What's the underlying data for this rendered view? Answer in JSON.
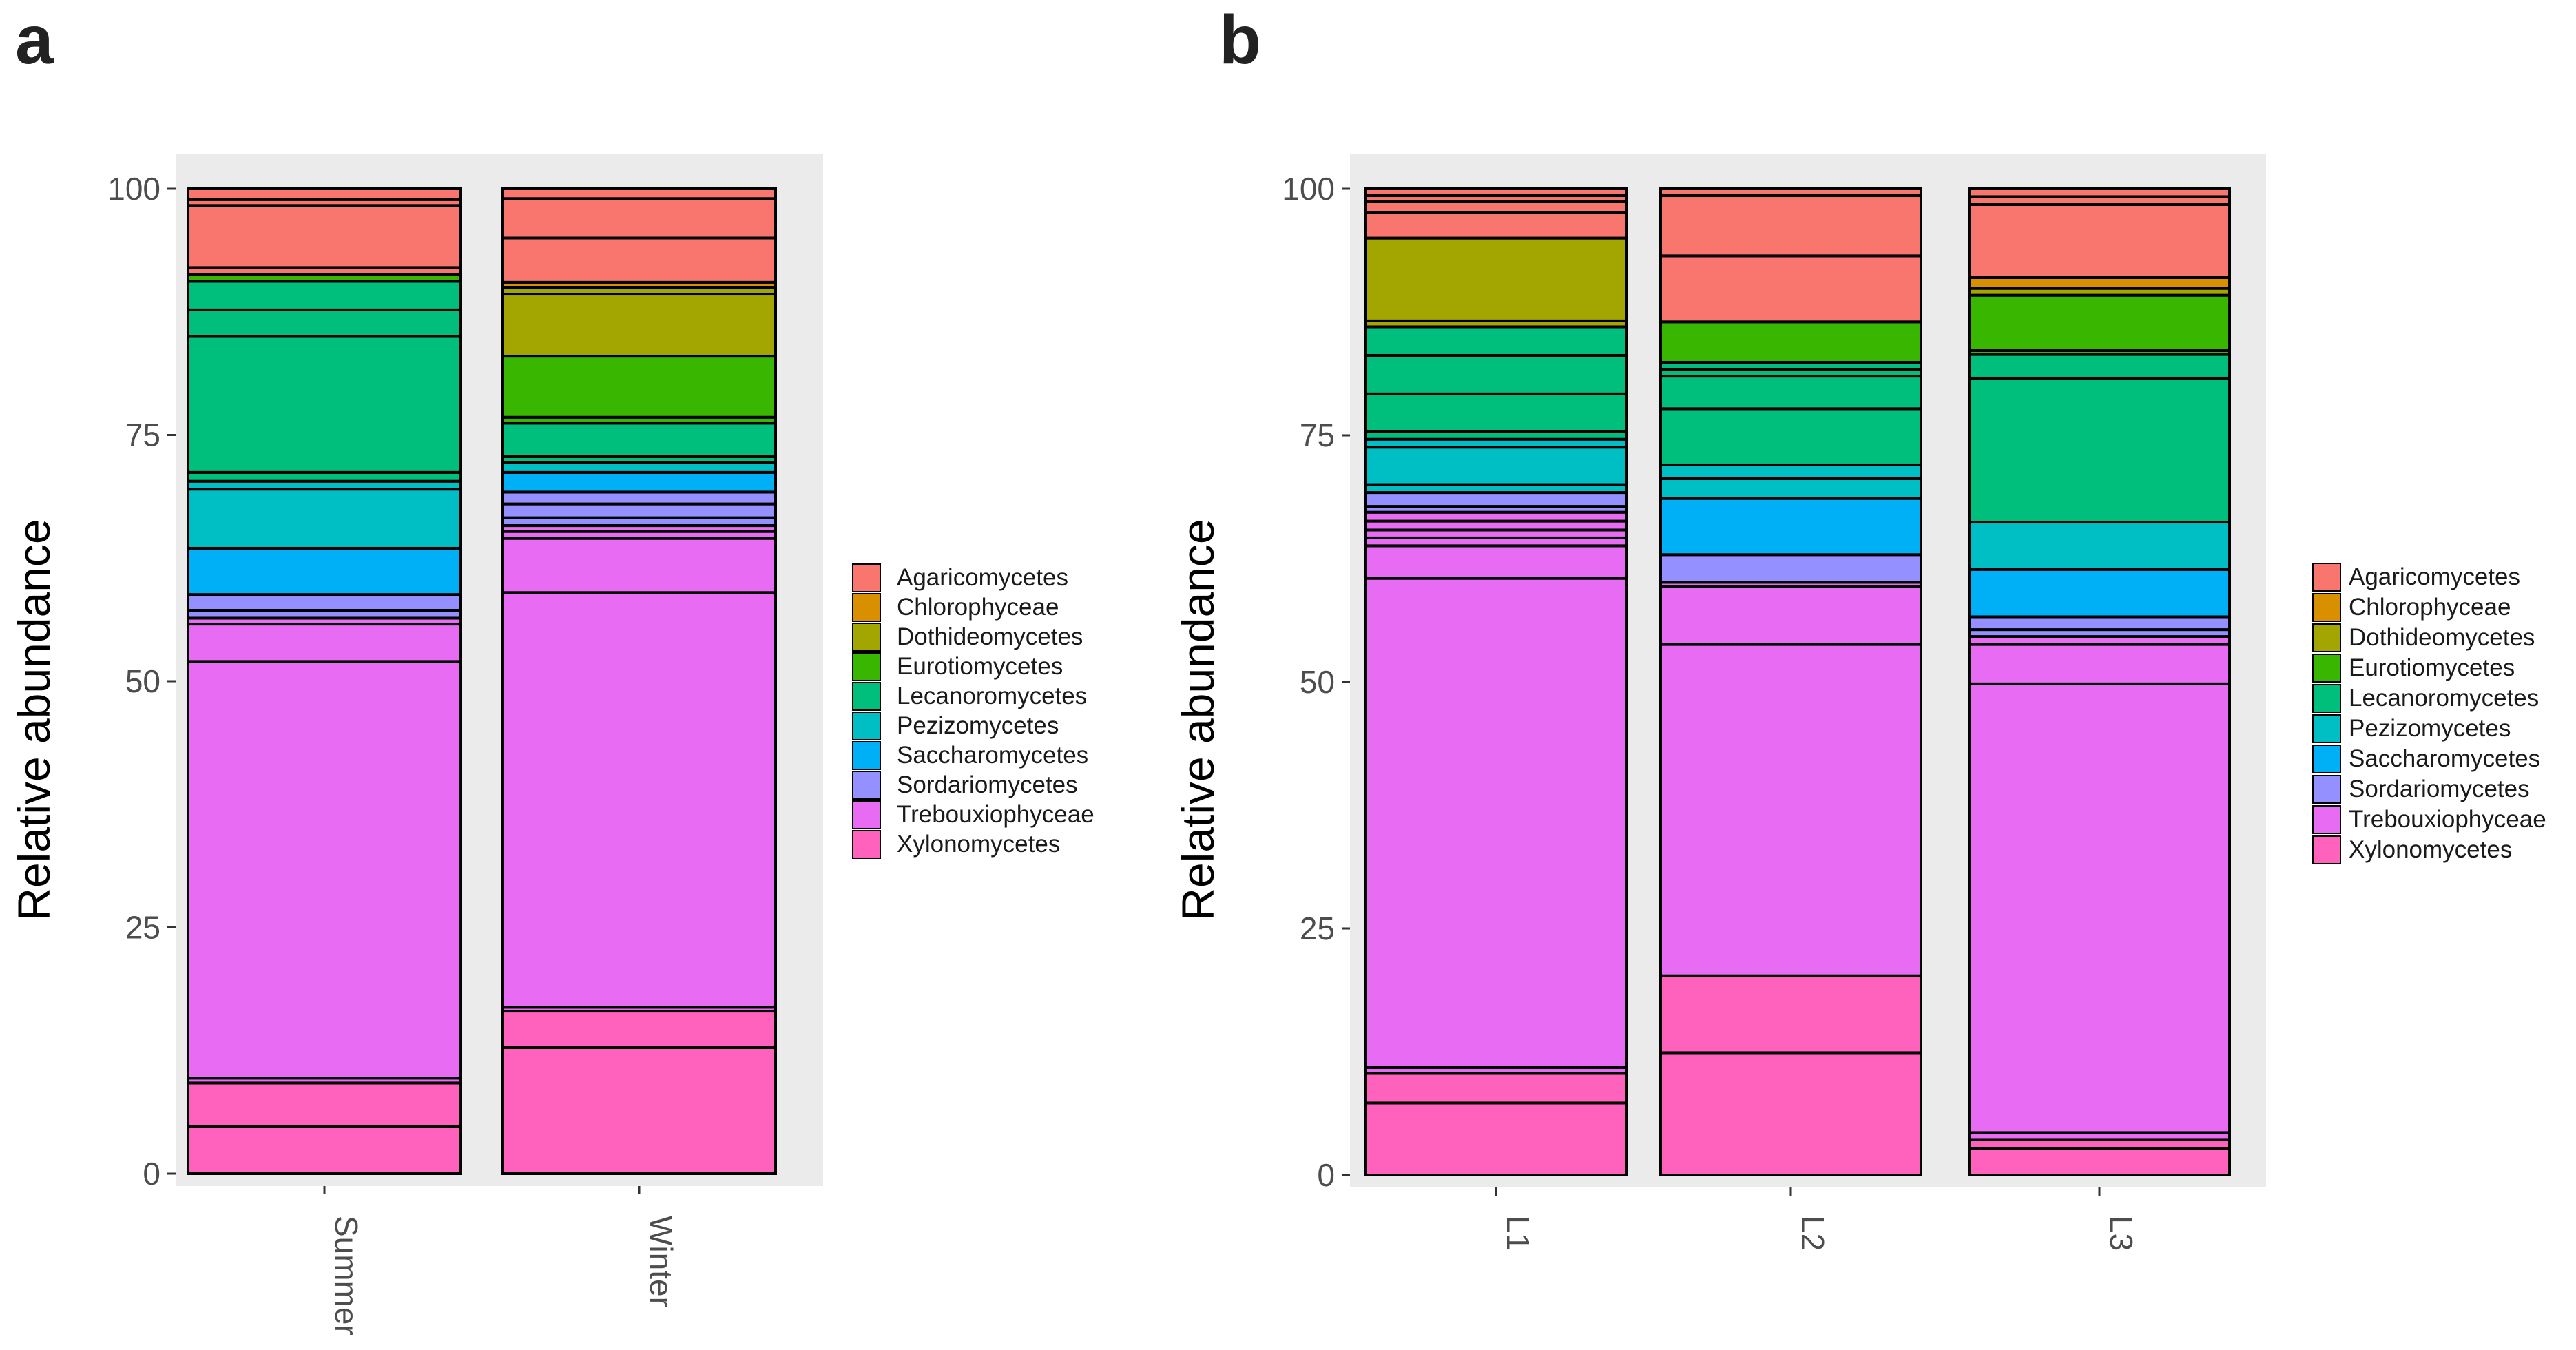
{
  "colors": {
    "Agaricomycetes": "#F8766D",
    "Chlorophyceae": "#D89000",
    "Dothideomycetes": "#A3A500",
    "Eurotiomycetes": "#39B600",
    "Lecanoromycetes": "#00BF7D",
    "Pezizomycetes": "#00BFC4",
    "Saccharomycetes": "#00B0F6",
    "Sordariomycetes": "#9590FF",
    "Trebouxiophyceae": "#E76BF3",
    "Xylonomycetes": "#FF62BC",
    "panel_background": "#EBEBEB",
    "segment_outline": "#000000"
  },
  "chart_data": [
    {
      "panel_label": "a",
      "type": "bar",
      "stacked": true,
      "title": "",
      "xlabel": "",
      "ylabel": "Relative abundance",
      "ylim": [
        0,
        100
      ],
      "yticks": [
        0,
        25,
        50,
        75,
        100
      ],
      "categories": [
        "Summer",
        "Winter"
      ],
      "legend": [
        "Agaricomycetes",
        "Chlorophyceae",
        "Dothideomycetes",
        "Eurotiomycetes",
        "Lecanoromycetes",
        "Pezizomycetes",
        "Saccharomycetes",
        "Sordariomycetes",
        "Trebouxiophyceae",
        "Xylonomycetes"
      ],
      "legend_position": "right",
      "grid": false,
      "bars": [
        {
          "category": "Summer",
          "segments": [
            {
              "class": "Xylonomycetes",
              "from": 0,
              "to": 4.8
            },
            {
              "class": "Xylonomycetes",
              "from": 4.8,
              "to": 9.2
            },
            {
              "class": "Trebouxiophyceae",
              "from": 9.2,
              "to": 9.7
            },
            {
              "class": "Trebouxiophyceae",
              "from": 9.7,
              "to": 52
            },
            {
              "class": "Trebouxiophyceae",
              "from": 52,
              "to": 55.8
            },
            {
              "class": "Trebouxiophyceae",
              "from": 55.8,
              "to": 56.4
            },
            {
              "class": "Sordariomycetes",
              "from": 56.4,
              "to": 57.2
            },
            {
              "class": "Sordariomycetes",
              "from": 57.2,
              "to": 58.8
            },
            {
              "class": "Saccharomycetes",
              "from": 58.8,
              "to": 63.5
            },
            {
              "class": "Pezizomycetes",
              "from": 63.5,
              "to": 69.5
            },
            {
              "class": "Pezizomycetes",
              "from": 69.5,
              "to": 70.3
            },
            {
              "class": "Lecanoromycetes",
              "from": 70.3,
              "to": 71.2
            },
            {
              "class": "Lecanoromycetes",
              "from": 71.2,
              "to": 85
            },
            {
              "class": "Lecanoromycetes",
              "from": 85,
              "to": 87.7
            },
            {
              "class": "Lecanoromycetes",
              "from": 87.7,
              "to": 90.6
            },
            {
              "class": "Eurotiomycetes",
              "from": 90.6,
              "to": 91.3
            },
            {
              "class": "Agaricomycetes",
              "from": 91.3,
              "to": 92
            },
            {
              "class": "Agaricomycetes",
              "from": 92,
              "to": 98.3
            },
            {
              "class": "Agaricomycetes",
              "from": 98.3,
              "to": 98.9
            },
            {
              "class": "Agaricomycetes",
              "from": 98.9,
              "to": 100
            }
          ]
        },
        {
          "category": "Winter",
          "segments": [
            {
              "class": "Xylonomycetes",
              "from": 0,
              "to": 12.8
            },
            {
              "class": "Xylonomycetes",
              "from": 12.8,
              "to": 16.5
            },
            {
              "class": "Trebouxiophyceae",
              "from": 16.5,
              "to": 16.9
            },
            {
              "class": "Trebouxiophyceae",
              "from": 16.9,
              "to": 59
            },
            {
              "class": "Trebouxiophyceae",
              "from": 59,
              "to": 64.5
            },
            {
              "class": "Trebouxiophyceae",
              "from": 64.5,
              "to": 65.2
            },
            {
              "class": "Trebouxiophyceae",
              "from": 65.2,
              "to": 65.8
            },
            {
              "class": "Sordariomycetes",
              "from": 65.8,
              "to": 66.6
            },
            {
              "class": "Sordariomycetes",
              "from": 66.6,
              "to": 68
            },
            {
              "class": "Sordariomycetes",
              "from": 68,
              "to": 69.2
            },
            {
              "class": "Saccharomycetes",
              "from": 69.2,
              "to": 71.2
            },
            {
              "class": "Pezizomycetes",
              "from": 71.2,
              "to": 72.2
            },
            {
              "class": "Lecanoromycetes",
              "from": 72.2,
              "to": 72.8
            },
            {
              "class": "Lecanoromycetes",
              "from": 72.8,
              "to": 76.2
            },
            {
              "class": "Eurotiomycetes",
              "from": 76.2,
              "to": 76.8
            },
            {
              "class": "Eurotiomycetes",
              "from": 76.8,
              "to": 83
            },
            {
              "class": "Dothideomycetes",
              "from": 83,
              "to": 89.3
            },
            {
              "class": "Dothideomycetes",
              "from": 89.3,
              "to": 90
            },
            {
              "class": "Chlorophyceae",
              "from": 90,
              "to": 90.5
            },
            {
              "class": "Agaricomycetes",
              "from": 90.5,
              "to": 95
            },
            {
              "class": "Agaricomycetes",
              "from": 95,
              "to": 99
            },
            {
              "class": "Agaricomycetes",
              "from": 99,
              "to": 100
            }
          ]
        }
      ]
    },
    {
      "panel_label": "b",
      "type": "bar",
      "stacked": true,
      "title": "",
      "xlabel": "",
      "ylabel": "Relative abundance",
      "ylim": [
        0,
        100
      ],
      "yticks": [
        0,
        25,
        50,
        75,
        100
      ],
      "categories": [
        "L1",
        "L2",
        "L3"
      ],
      "legend": [
        "Agaricomycetes",
        "Chlorophyceae",
        "Dothideomycetes",
        "Eurotiomycetes",
        "Lecanoromycetes",
        "Pezizomycetes",
        "Saccharomycetes",
        "Sordariomycetes",
        "Trebouxiophyceae",
        "Xylonomycetes"
      ],
      "legend_position": "right",
      "grid": false,
      "bars": [
        {
          "category": "L1",
          "segments": [
            {
              "class": "Xylonomycetes",
              "from": 0,
              "to": 7.3
            },
            {
              "class": "Xylonomycetes",
              "from": 7.3,
              "to": 10.3
            },
            {
              "class": "Trebouxiophyceae",
              "from": 10.3,
              "to": 10.9
            },
            {
              "class": "Trebouxiophyceae",
              "from": 10.9,
              "to": 60.5
            },
            {
              "class": "Trebouxiophyceae",
              "from": 60.5,
              "to": 63.8
            },
            {
              "class": "Trebouxiophyceae",
              "from": 63.8,
              "to": 64.6
            },
            {
              "class": "Trebouxiophyceae",
              "from": 64.6,
              "to": 65.4
            },
            {
              "class": "Trebouxiophyceae",
              "from": 65.4,
              "to": 66.3
            },
            {
              "class": "Trebouxiophyceae",
              "from": 66.3,
              "to": 67.2
            },
            {
              "class": "Sordariomycetes",
              "from": 67.2,
              "to": 67.8
            },
            {
              "class": "Sordariomycetes",
              "from": 67.8,
              "to": 69.2
            },
            {
              "class": "Pezizomycetes",
              "from": 69.2,
              "to": 70
            },
            {
              "class": "Pezizomycetes",
              "from": 70,
              "to": 73.8
            },
            {
              "class": "Pezizomycetes",
              "from": 73.8,
              "to": 74.6
            },
            {
              "class": "Lecanoromycetes",
              "from": 74.6,
              "to": 75.4
            },
            {
              "class": "Lecanoromycetes",
              "from": 75.4,
              "to": 79.2
            },
            {
              "class": "Lecanoromycetes",
              "from": 79.2,
              "to": 83.1
            },
            {
              "class": "Lecanoromycetes",
              "from": 83.1,
              "to": 86
            },
            {
              "class": "Dothideomycetes",
              "from": 86,
              "to": 86.6
            },
            {
              "class": "Dothideomycetes",
              "from": 86.6,
              "to": 95
            },
            {
              "class": "Agaricomycetes",
              "from": 95,
              "to": 97.6
            },
            {
              "class": "Agaricomycetes",
              "from": 97.6,
              "to": 98.7
            },
            {
              "class": "Agaricomycetes",
              "from": 98.7,
              "to": 99.3
            },
            {
              "class": "Agaricomycetes",
              "from": 99.3,
              "to": 100
            }
          ]
        },
        {
          "category": "L2",
          "segments": [
            {
              "class": "Xylonomycetes",
              "from": 0,
              "to": 12.4
            },
            {
              "class": "Xylonomycetes",
              "from": 12.4,
              "to": 20.2
            },
            {
              "class": "Trebouxiophyceae",
              "from": 20.2,
              "to": 53.8
            },
            {
              "class": "Trebouxiophyceae",
              "from": 53.8,
              "to": 59.7
            },
            {
              "class": "Trebouxiophyceae",
              "from": 59.7,
              "to": 60.1
            },
            {
              "class": "Sordariomycetes",
              "from": 60.1,
              "to": 62.9
            },
            {
              "class": "Saccharomycetes",
              "from": 62.9,
              "to": 68.6
            },
            {
              "class": "Pezizomycetes",
              "from": 68.6,
              "to": 70.6
            },
            {
              "class": "Pezizomycetes",
              "from": 70.6,
              "to": 72
            },
            {
              "class": "Lecanoromycetes",
              "from": 72,
              "to": 77.7
            },
            {
              "class": "Lecanoromycetes",
              "from": 77.7,
              "to": 81
            },
            {
              "class": "Lecanoromycetes",
              "from": 81,
              "to": 81.7
            },
            {
              "class": "Lecanoromycetes",
              "from": 81.7,
              "to": 82.4
            },
            {
              "class": "Eurotiomycetes",
              "from": 82.4,
              "to": 86.5
            },
            {
              "class": "Agaricomycetes",
              "from": 86.5,
              "to": 93.2
            },
            {
              "class": "Agaricomycetes",
              "from": 93.2,
              "to": 99.3
            },
            {
              "class": "Agaricomycetes",
              "from": 99.3,
              "to": 100
            }
          ]
        },
        {
          "category": "L3",
          "segments": [
            {
              "class": "Xylonomycetes",
              "from": 0,
              "to": 2.7
            },
            {
              "class": "Xylonomycetes",
              "from": 2.7,
              "to": 3.6
            },
            {
              "class": "Trebouxiophyceae",
              "from": 3.6,
              "to": 4.3
            },
            {
              "class": "Trebouxiophyceae",
              "from": 4.3,
              "to": 49.8
            },
            {
              "class": "Trebouxiophyceae",
              "from": 49.8,
              "to": 53.8
            },
            {
              "class": "Trebouxiophyceae",
              "from": 53.8,
              "to": 54.6
            },
            {
              "class": "Sordariomycetes",
              "from": 54.6,
              "to": 55.3
            },
            {
              "class": "Sordariomycetes",
              "from": 55.3,
              "to": 56.6
            },
            {
              "class": "Saccharomycetes",
              "from": 56.6,
              "to": 61.4
            },
            {
              "class": "Pezizomycetes",
              "from": 61.4,
              "to": 66.2
            },
            {
              "class": "Lecanoromycetes",
              "from": 66.2,
              "to": 80.8
            },
            {
              "class": "Lecanoromycetes",
              "from": 80.8,
              "to": 83.2
            },
            {
              "class": "Eurotiomycetes",
              "from": 83.2,
              "to": 83.6
            },
            {
              "class": "Eurotiomycetes",
              "from": 83.6,
              "to": 89.2
            },
            {
              "class": "Dothideomycetes",
              "from": 89.2,
              "to": 89.9
            },
            {
              "class": "Chlorophyceae",
              "from": 89.9,
              "to": 91
            },
            {
              "class": "Agaricomycetes",
              "from": 91,
              "to": 98.4
            },
            {
              "class": "Agaricomycetes",
              "from": 98.4,
              "to": 99.2
            },
            {
              "class": "Agaricomycetes",
              "from": 99.2,
              "to": 100
            }
          ]
        }
      ]
    }
  ]
}
